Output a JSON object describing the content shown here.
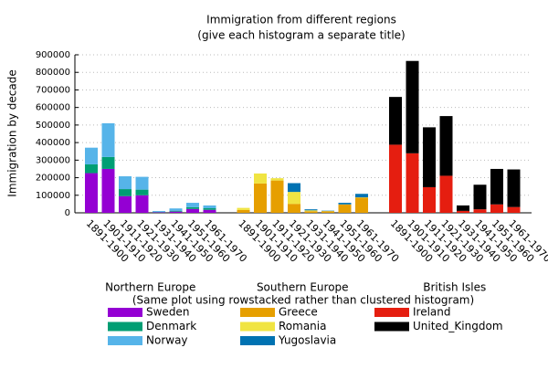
{
  "chart_data": {
    "type": "bar",
    "stacked": true,
    "title": "Immigration from different regions",
    "subtitle": "(give each histogram a separate title)",
    "y_label": "Immigration by decade",
    "note": "(Same plot using rowstacked rather than clustered histogram)",
    "ylim": [
      0,
      900000
    ],
    "yticks": [
      0,
      100000,
      200000,
      300000,
      400000,
      500000,
      600000,
      700000,
      800000,
      900000
    ],
    "grid": true,
    "groups": [
      {
        "name": "Northern Europe",
        "categories": [
          "1891-1900",
          "1901-1910",
          "1911-1920",
          "1921-1930",
          "1931-1940",
          "1941-1950",
          "1951-1960",
          "1961-1970"
        ],
        "series": [
          {
            "name": "Sweden",
            "color": "#9400d3",
            "values": [
              226000,
              250000,
              95000,
              100000,
              3000,
              7000,
              22000,
              17000
            ]
          },
          {
            "name": "Denmark",
            "color": "#009e73",
            "values": [
              50000,
              68000,
              40000,
              32000,
              2000,
              5000,
              10000,
              9000
            ]
          },
          {
            "name": "Norway",
            "color": "#56b4e9",
            "values": [
              95000,
              192000,
              73000,
              73000,
              5000,
              13000,
              25000,
              16000
            ]
          }
        ]
      },
      {
        "name": "Southern Europe",
        "categories": [
          "1891-1900",
          "1901-1910",
          "1911-1920",
          "1921-1930",
          "1931-1940",
          "1941-1950",
          "1951-1960",
          "1961-1970"
        ],
        "series": [
          {
            "name": "Greece",
            "color": "#e69f00",
            "values": [
              16000,
              167000,
              184000,
              51000,
              9000,
              9000,
              47000,
              86000
            ]
          },
          {
            "name": "Romania",
            "color": "#f0e442",
            "values": [
              12000,
              57000,
              13000,
              68000,
              5000,
              1000,
              1000,
              2000
            ]
          },
          {
            "name": "Yugoslavia",
            "color": "#0072b2",
            "values": [
              0,
              0,
              0,
              50000,
              6000,
              2000,
              9000,
              20000
            ]
          }
        ]
      },
      {
        "name": "British Isles",
        "categories": [
          "1891-1900",
          "1901-1910",
          "1911-1920",
          "1921-1930",
          "1931-1940",
          "1941-1950",
          "1951-1960",
          "1961-1970"
        ],
        "series": [
          {
            "name": "Ireland",
            "color": "#e51e10",
            "values": [
              388000,
              339000,
              146000,
              211000,
              11000,
              20000,
              48000,
              33000
            ]
          },
          {
            "name": "United_Kingdom",
            "color": "#000000",
            "values": [
              272000,
              526000,
              341000,
              340000,
              31000,
              140000,
              202000,
              214000
            ]
          }
        ]
      }
    ]
  }
}
